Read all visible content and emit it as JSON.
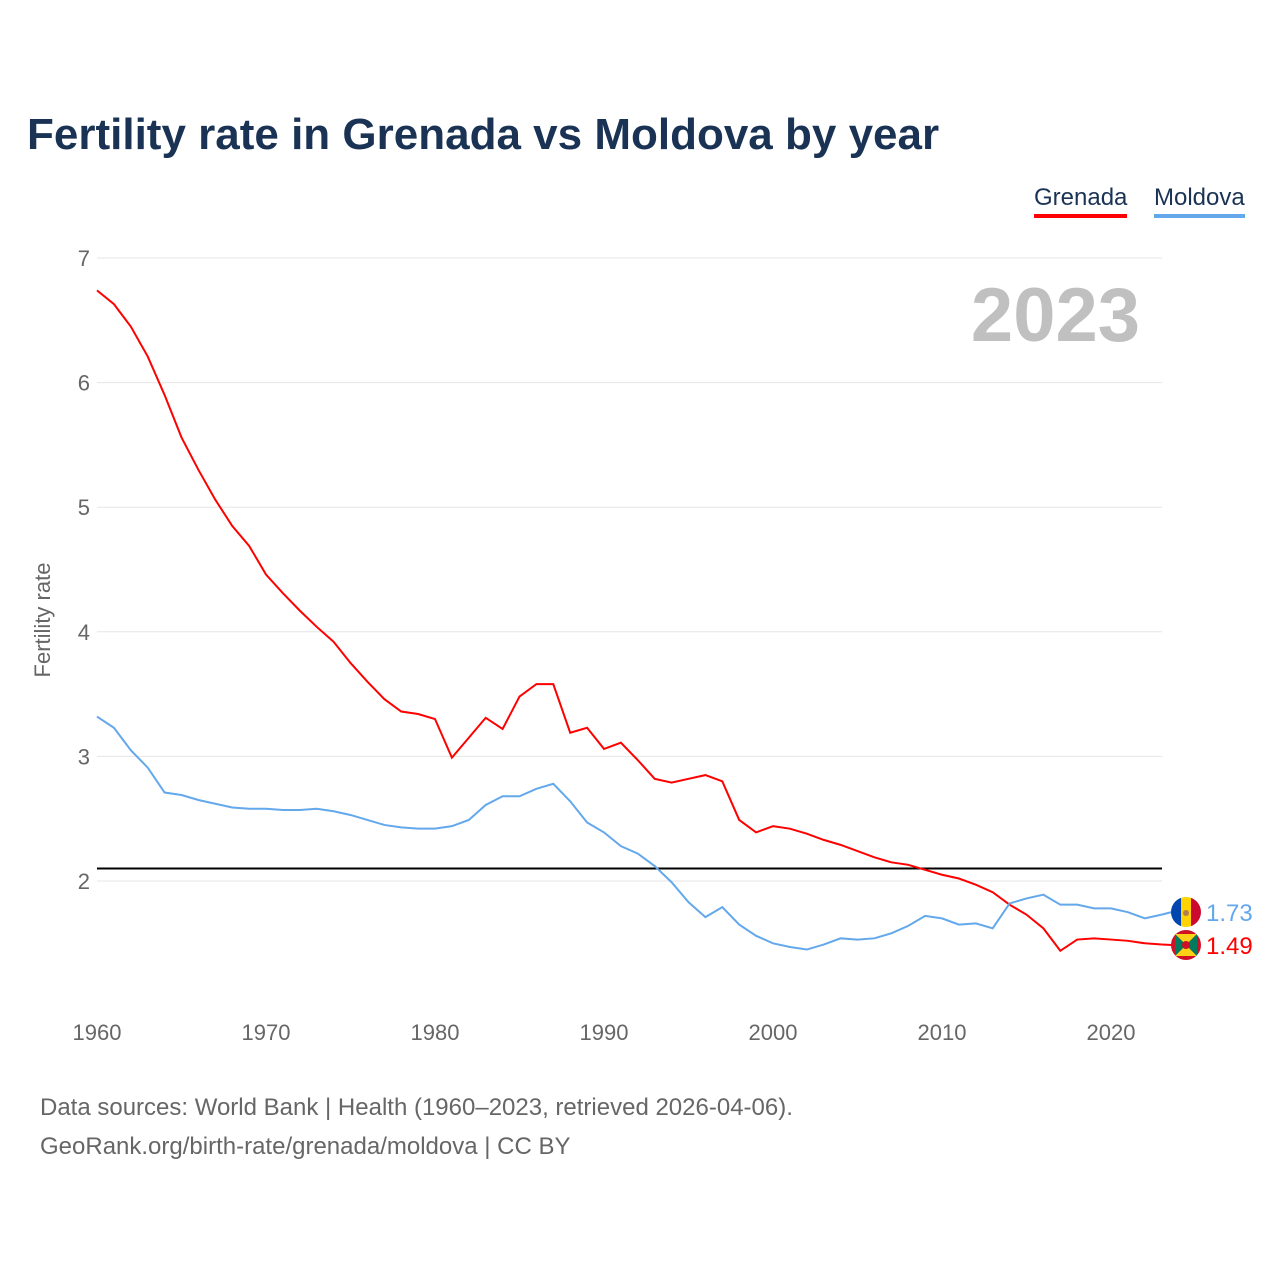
{
  "title": "Fertility rate in Grenada vs Moldova by year",
  "source_line1": "Data sources: World Bank | Health (1960–2023, retrieved 2026-04-06).",
  "source_line2": "GeoRank.org/birth-rate/grenada/moldova | CC BY",
  "chart_data": {
    "type": "line",
    "title": "Fertility rate in Grenada vs Moldova by year",
    "ylabel": "Fertility rate",
    "xlabel": "",
    "year_label": "2023",
    "ylim": [
      1,
      7
    ],
    "xlim": [
      1960,
      2023
    ],
    "yticks": [
      "2",
      "3",
      "4",
      "5",
      "6",
      "7"
    ],
    "xticks": [
      "1960",
      "1970",
      "1980",
      "1990",
      "2000",
      "2010",
      "2020"
    ],
    "reference_line": 2.1,
    "legend_position": "top-right",
    "x": [
      1960,
      1961,
      1962,
      1963,
      1964,
      1965,
      1966,
      1967,
      1968,
      1969,
      1970,
      1971,
      1972,
      1973,
      1974,
      1975,
      1976,
      1977,
      1978,
      1979,
      1980,
      1981,
      1982,
      1983,
      1984,
      1985,
      1986,
      1987,
      1988,
      1989,
      1990,
      1991,
      1992,
      1993,
      1994,
      1995,
      1996,
      1997,
      1998,
      1999,
      2000,
      2001,
      2002,
      2003,
      2004,
      2005,
      2006,
      2007,
      2008,
      2009,
      2010,
      2011,
      2012,
      2013,
      2014,
      2015,
      2016,
      2017,
      2018,
      2019,
      2020,
      2021,
      2022,
      2023
    ],
    "series": [
      {
        "name": "Grenada",
        "color": "#ff0000",
        "end_label": "1.49",
        "flag": "grenada-flag",
        "values": [
          6.74,
          6.63,
          6.45,
          6.21,
          5.9,
          5.56,
          5.3,
          5.06,
          4.85,
          4.69,
          4.46,
          4.31,
          4.17,
          4.04,
          3.92,
          3.75,
          3.6,
          3.46,
          3.36,
          3.34,
          3.3,
          2.99,
          3.15,
          3.31,
          3.22,
          3.48,
          3.58,
          3.58,
          3.19,
          3.23,
          3.06,
          3.11,
          2.97,
          2.82,
          2.79,
          2.82,
          2.85,
          2.8,
          2.49,
          2.39,
          2.44,
          2.42,
          2.38,
          2.33,
          2.29,
          2.24,
          2.19,
          2.15,
          2.13,
          2.09,
          2.05,
          2.02,
          1.97,
          1.91,
          1.81,
          1.73,
          1.62,
          1.44,
          1.53,
          1.54,
          1.53,
          1.52,
          1.5,
          1.49
        ]
      },
      {
        "name": "Moldova",
        "color": "#64a8ec",
        "end_label": "1.73",
        "flag": "moldova-flag",
        "values": [
          3.32,
          3.23,
          3.05,
          2.91,
          2.71,
          2.69,
          2.65,
          2.62,
          2.59,
          2.58,
          2.58,
          2.57,
          2.57,
          2.58,
          2.56,
          2.53,
          2.49,
          2.45,
          2.43,
          2.42,
          2.42,
          2.44,
          2.49,
          2.61,
          2.68,
          2.68,
          2.74,
          2.78,
          2.64,
          2.47,
          2.39,
          2.28,
          2.22,
          2.12,
          1.99,
          1.83,
          1.71,
          1.79,
          1.65,
          1.56,
          1.5,
          1.47,
          1.45,
          1.49,
          1.54,
          1.53,
          1.54,
          1.58,
          1.64,
          1.72,
          1.7,
          1.65,
          1.66,
          1.62,
          1.82,
          1.86,
          1.89,
          1.81,
          1.81,
          1.78,
          1.78,
          1.75,
          1.7,
          1.73
        ]
      }
    ]
  }
}
